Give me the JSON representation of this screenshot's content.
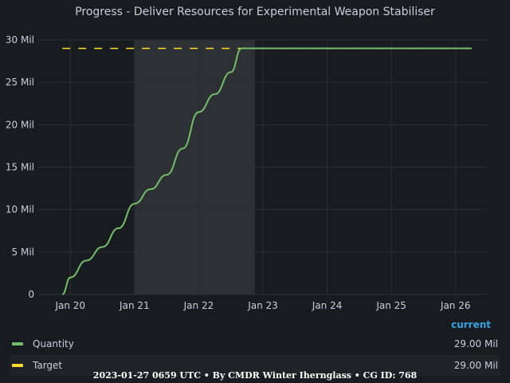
{
  "panel": {
    "title": "Progress - Deliver Resources for Experimental Weapon Stabiliser"
  },
  "chart_data": {
    "type": "line",
    "title": "Progress - Deliver Resources for Experimental Weapon Stabiliser",
    "x_axis": {
      "type": "time",
      "ticks": [
        "Jan 20",
        "Jan 21",
        "Jan 22",
        "Jan 23",
        "Jan 24",
        "Jan 25",
        "Jan 26"
      ],
      "range": [
        "2023-01-19T12:00",
        "2023-01-26T12:00"
      ]
    },
    "y_axis": {
      "ticks": [
        "0",
        "5 Mil",
        "10 Mil",
        "15 Mil",
        "20 Mil",
        "25 Mil",
        "30 Mil"
      ],
      "range_millions": [
        0,
        30
      ]
    },
    "grid": true,
    "highlight_region": [
      "2023-01-21T00:00",
      "2023-01-22T21:00"
    ],
    "series": [
      {
        "name": "Quantity",
        "color": "#73bf69",
        "style": "solid",
        "current": "29.00 Mil",
        "x": [
          "2023-01-19T21:00",
          "2023-01-20T00:00",
          "2023-01-20T06:00",
          "2023-01-20T12:00",
          "2023-01-20T18:00",
          "2023-01-21T00:00",
          "2023-01-21T06:00",
          "2023-01-21T12:00",
          "2023-01-21T18:00",
          "2023-01-22T00:00",
          "2023-01-22T06:00",
          "2023-01-22T12:00",
          "2023-01-22T16:00",
          "2023-01-23T00:00",
          "2023-01-24T00:00",
          "2023-01-25T00:00",
          "2023-01-26T06:00"
        ],
        "values_millions": [
          0,
          2.0,
          4.0,
          5.6,
          7.8,
          10.7,
          12.4,
          14.1,
          17.2,
          21.5,
          23.6,
          26.2,
          29.0,
          29.0,
          29.0,
          29.0,
          29.0
        ]
      },
      {
        "name": "Target",
        "color": "#fade2a",
        "style": "dashed",
        "current": "29.00 Mil",
        "x": [
          "2023-01-19T21:00",
          "2023-01-26T06:00"
        ],
        "values_millions": [
          29.0,
          29.0
        ]
      }
    ]
  },
  "legend": {
    "header": "current"
  },
  "footer": "2023-01-27 0659 UTC • By CMDR Winter Ihernglass • CG ID: 768"
}
